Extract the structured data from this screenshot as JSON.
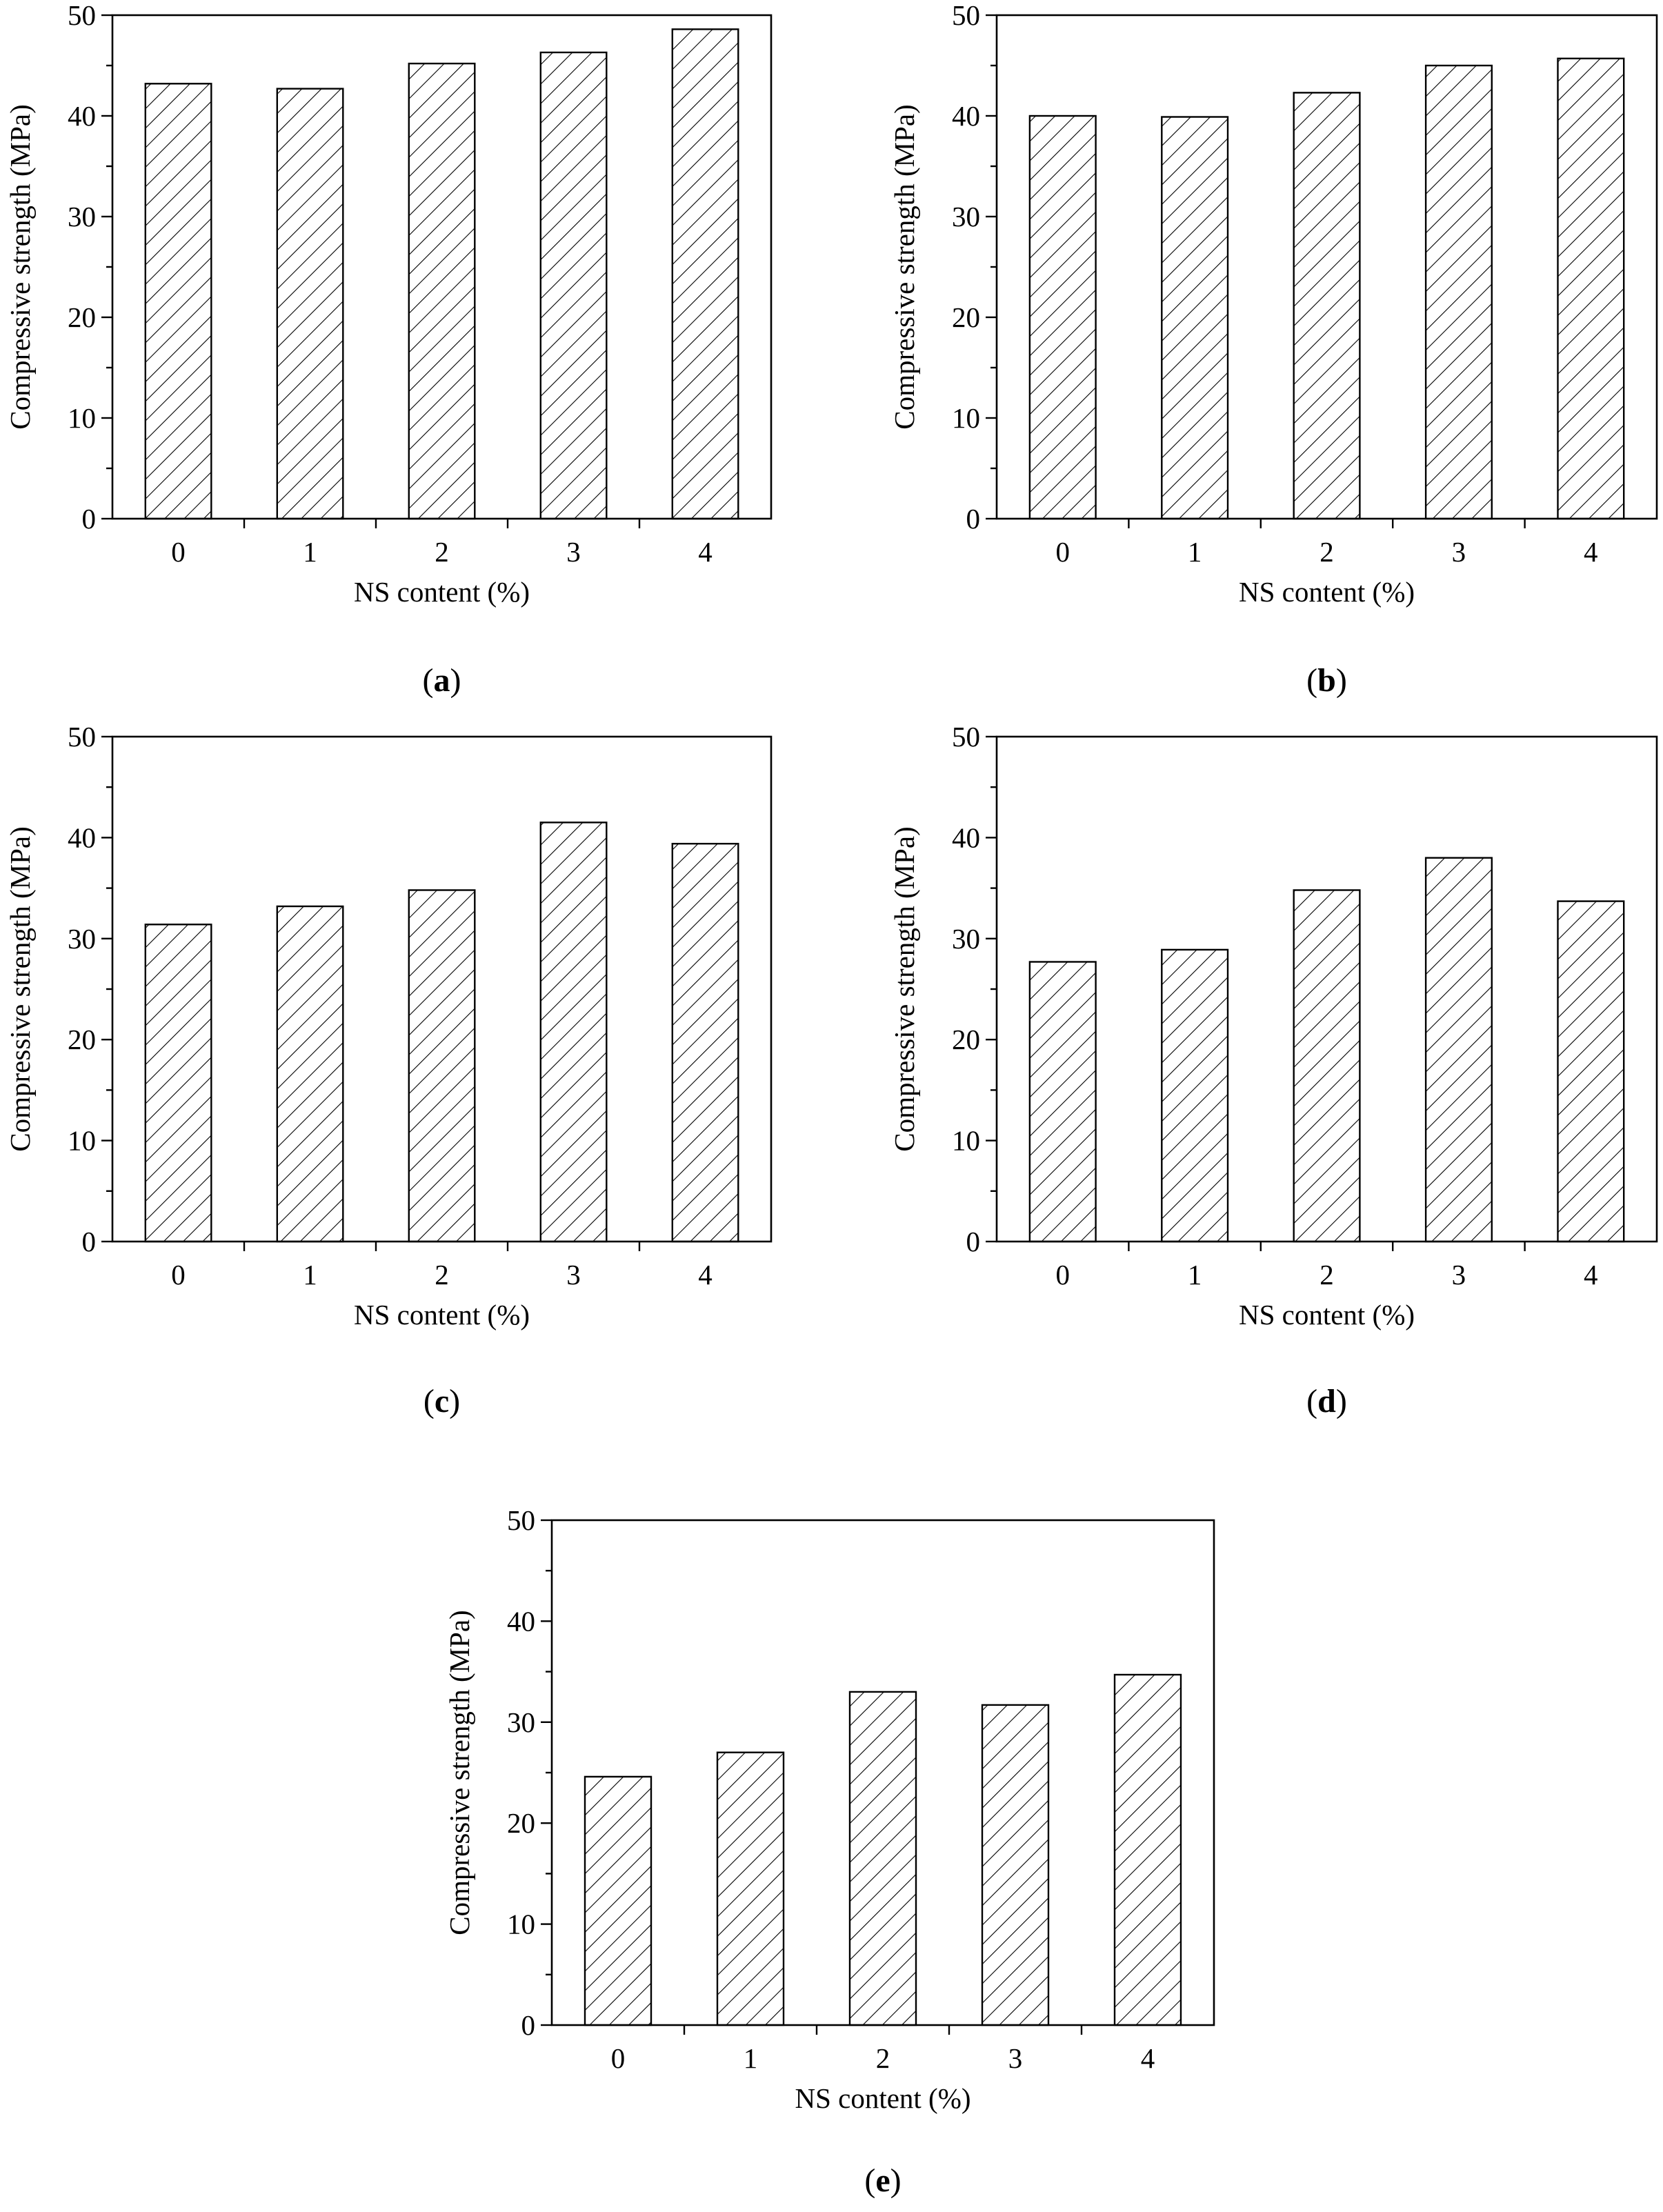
{
  "chart_data": [
    {
      "panel": "a",
      "type": "bar",
      "categories": [
        "0",
        "1",
        "2",
        "3",
        "4"
      ],
      "values": [
        43.2,
        42.7,
        45.2,
        46.3,
        48.6
      ],
      "xlabel": "NS content (%)",
      "ylabel": "Compressive strength (MPa)",
      "ylim": [
        0,
        50
      ],
      "yticks": [
        "0",
        "10",
        "20",
        "30",
        "40",
        "50"
      ],
      "label": "a"
    },
    {
      "panel": "b",
      "type": "bar",
      "categories": [
        "0",
        "1",
        "2",
        "3",
        "4"
      ],
      "values": [
        40.0,
        39.9,
        42.3,
        45.0,
        45.7
      ],
      "xlabel": "NS content (%)",
      "ylabel": "Compressive strength (MPa)",
      "ylim": [
        0,
        50
      ],
      "yticks": [
        "0",
        "10",
        "20",
        "30",
        "40",
        "50"
      ],
      "label": "b"
    },
    {
      "panel": "c",
      "type": "bar",
      "categories": [
        "0",
        "1",
        "2",
        "3",
        "4"
      ],
      "values": [
        31.4,
        33.2,
        34.8,
        41.5,
        39.4
      ],
      "xlabel": "NS content (%)",
      "ylabel": "Compressive strength (MPa)",
      "ylim": [
        0,
        50
      ],
      "yticks": [
        "0",
        "10",
        "20",
        "30",
        "40",
        "50"
      ],
      "label": "c"
    },
    {
      "panel": "d",
      "type": "bar",
      "categories": [
        "0",
        "1",
        "2",
        "3",
        "4"
      ],
      "values": [
        27.7,
        28.9,
        34.8,
        38.0,
        33.7
      ],
      "xlabel": "NS content (%)",
      "ylabel": "Compressive strength (MPa)",
      "ylim": [
        0,
        50
      ],
      "yticks": [
        "0",
        "10",
        "20",
        "30",
        "40",
        "50"
      ],
      "label": "d"
    },
    {
      "panel": "e",
      "type": "bar",
      "categories": [
        "0",
        "1",
        "2",
        "3",
        "4"
      ],
      "values": [
        24.6,
        27.0,
        33.0,
        31.7,
        34.7
      ],
      "xlabel": "NS content (%)",
      "ylabel": "Compressive strength (MPa)",
      "ylim": [
        0,
        50
      ],
      "yticks": [
        "0",
        "10",
        "20",
        "30",
        "40",
        "50"
      ],
      "label": "e"
    }
  ],
  "colors": {
    "bar_fill": "#ffffff",
    "bar_stroke": "#000000",
    "hatch": "#000000",
    "axis": "#000000"
  }
}
